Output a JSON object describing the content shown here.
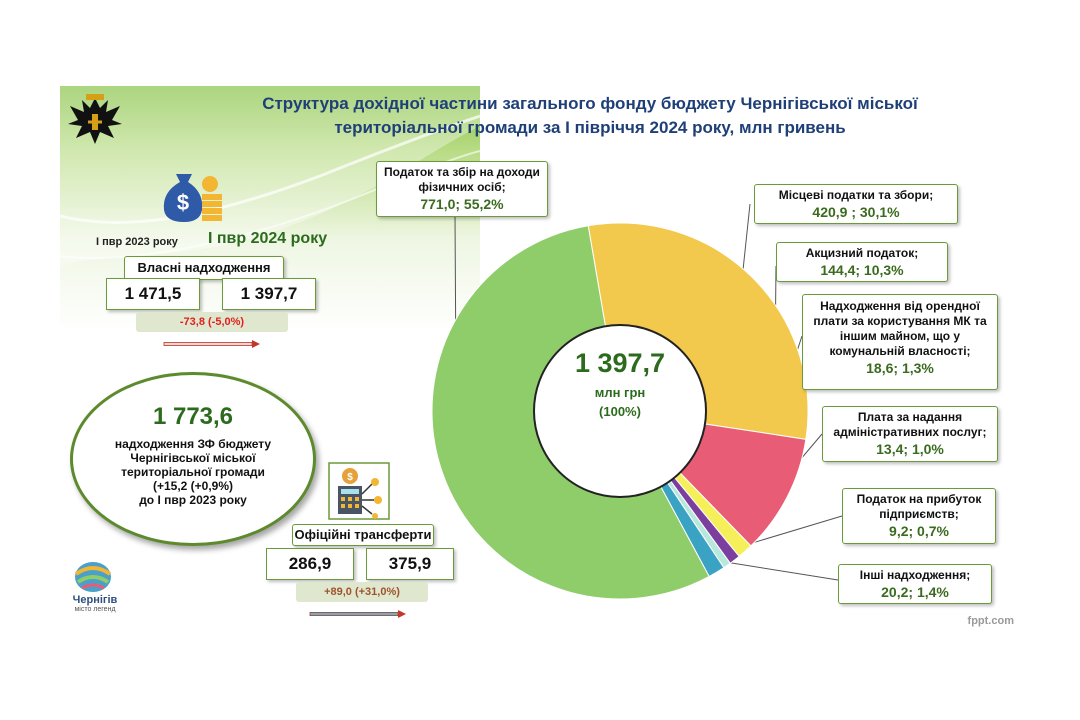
{
  "title_line1": "Структура дохідної частини загального фонду бюджету Чернігівської міської",
  "title_line2": "територіальної громади за І півріччя 2024 року, млн гривень",
  "period_2023": "І пвр 2023 року",
  "period_2024": "І пвр 2024 року",
  "own_revenue": {
    "label": "Власні надходження",
    "value_2023": "1 471,5",
    "value_2024": "1 397,7",
    "delta": "-73,8 (-5,0%)"
  },
  "total": {
    "value": "1 773,6",
    "line1": "надходження ЗФ бюджету",
    "line2": "Чернігівської міської",
    "line3": "територіальної громади",
    "line4": "(+15,2 (+0,9%)",
    "line5": "до І пвр 2023 року"
  },
  "transfers": {
    "label": "Офіційні трансферти",
    "value_2023": "286,9",
    "value_2024": "375,9",
    "delta": "+89,0 (+31,0%)"
  },
  "city_logo_name": "Чернігів",
  "city_logo_tagline": "місто легенд",
  "footer_mark": "fppt.com",
  "center": {
    "value": "1 397,7",
    "unit": "млн грн",
    "pct": "(100%)"
  },
  "labels": [
    {
      "text": "Податок та збір на доходи фізичних осіб;",
      "value": "771,0; 55,2%"
    },
    {
      "text": "Місцеві податки та збори;",
      "value": "420,9 ;  30,1%"
    },
    {
      "text": "Акцизний податок;",
      "value": "144,4; 10,3%"
    },
    {
      "text": "Надходження від орендної плати за користування МК та іншим майном, що у комунальній власності;",
      "value": "18,6; 1,3%"
    },
    {
      "text": "Плата за надання адміністративних послуг;",
      "value": "13,4; 1,0%"
    },
    {
      "text": "Податок на прибуток підприємств;",
      "value": "9,2; 0,7%"
    },
    {
      "text": "Інші надходження;",
      "value": "20,2; 1,4%"
    }
  ],
  "chart_data": {
    "type": "pie",
    "title": "Структура дохідної частини загального фонду бюджету Чернігівської міської територіальної громади за І півріччя 2024 року, млн гривень",
    "total": 1397.7,
    "unit": "млн грн",
    "series": [
      {
        "category": "Податок та збір на доходи фізичних осіб",
        "value": 771.0,
        "percent": 55.2,
        "color": "#8fcc6a"
      },
      {
        "category": "Місцеві податки та збори",
        "value": 420.9,
        "percent": 30.1,
        "color": "#f2c94c"
      },
      {
        "category": "Акцизний податок",
        "value": 144.4,
        "percent": 10.3,
        "color": "#e85d75"
      },
      {
        "category": "Надходження від орендної плати за користування МК та іншим майном, що у комунальній власності",
        "value": 18.6,
        "percent": 1.3,
        "color": "#f5f05a"
      },
      {
        "category": "Плата за надання адміністративних послуг",
        "value": 13.4,
        "percent": 1.0,
        "color": "#7b3fa0"
      },
      {
        "category": "Податок на прибуток підприємств",
        "value": 9.2,
        "percent": 0.7,
        "color": "#b8e8dc"
      },
      {
        "category": "Інші надходження",
        "value": 20.2,
        "percent": 1.4,
        "color": "#3aa3c4"
      }
    ]
  }
}
